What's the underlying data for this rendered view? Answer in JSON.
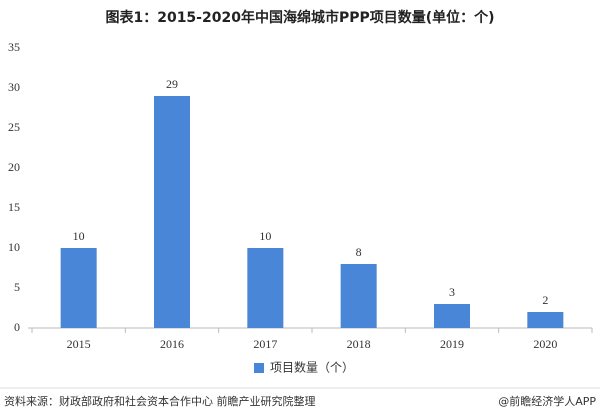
{
  "chart_data": {
    "type": "bar",
    "title": "图表1：2015-2020年中国海绵城市PPP项目数量(单位：个)",
    "categories": [
      "2015",
      "2016",
      "2017",
      "2018",
      "2019",
      "2020"
    ],
    "series": [
      {
        "name": "项目数量（个）",
        "color": "#4a86d8",
        "values": [
          10,
          29,
          10,
          8,
          3,
          2
        ]
      }
    ],
    "ylim": [
      0,
      35
    ],
    "yticks": [
      0,
      5,
      10,
      15,
      20,
      25,
      30,
      35
    ],
    "grid": false,
    "legend": "bottom",
    "source": "资料来源：财政部政府和社会资本合作中心 前瞻产业研究院整理",
    "credit": "@前瞻经济学人APP"
  }
}
